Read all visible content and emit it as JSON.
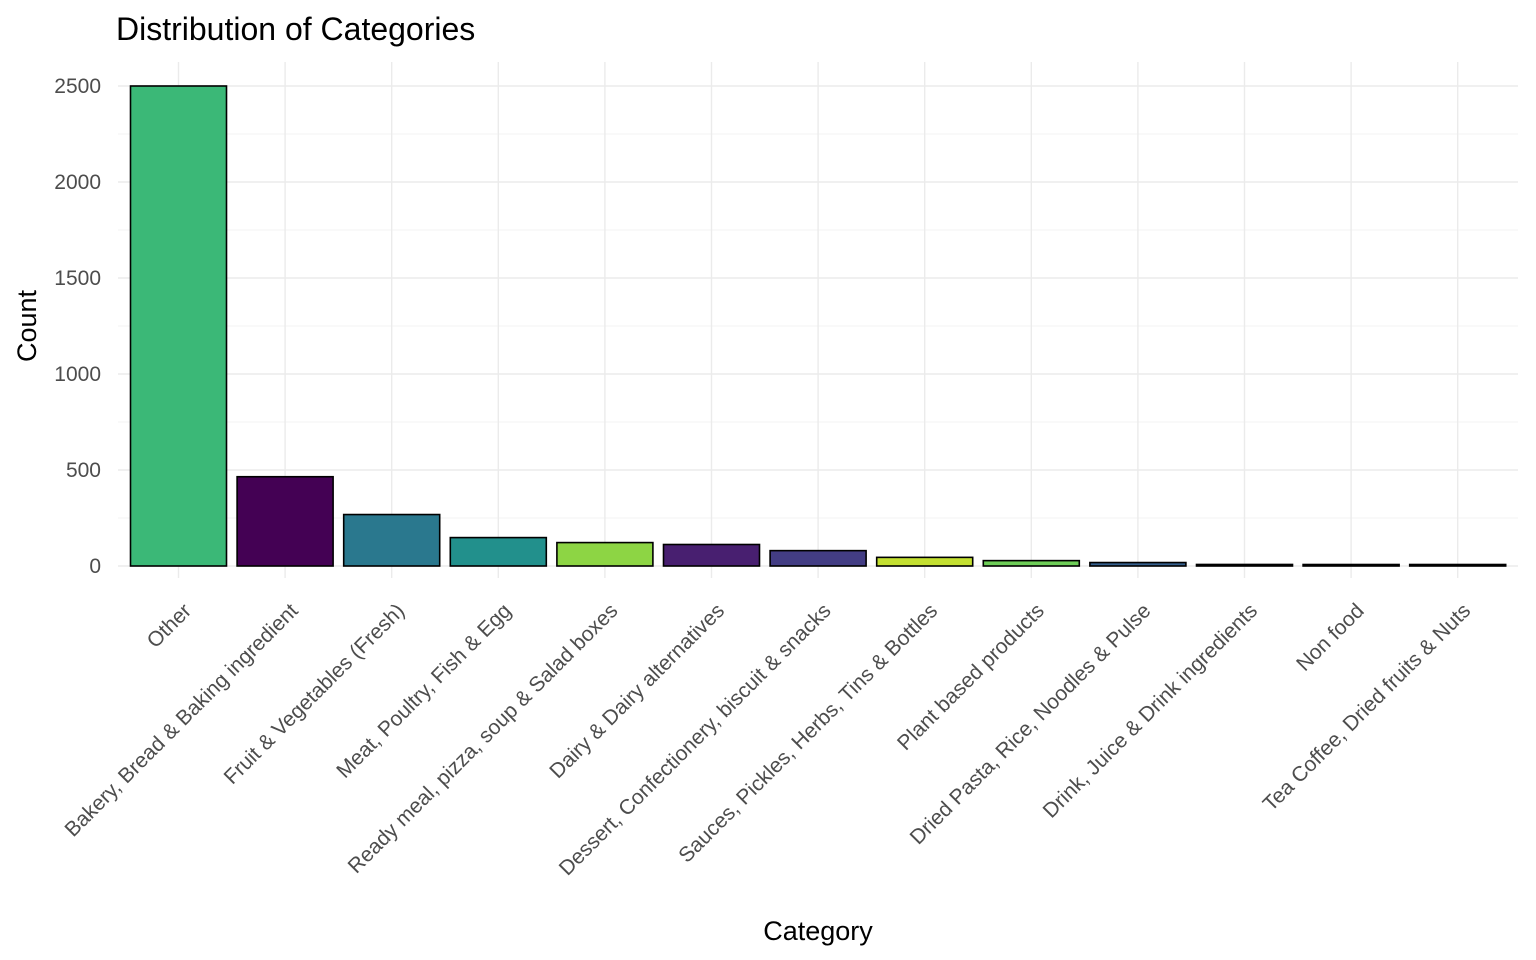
{
  "chart_data": {
    "type": "bar",
    "title": "Distribution of Categories",
    "xlabel": "Category",
    "ylabel": "Count",
    "ylim": [
      0,
      2500
    ],
    "yticks": [
      0,
      500,
      1000,
      1500,
      2000,
      2500
    ],
    "grid": true,
    "legend": "none",
    "categories": [
      "Other",
      "Bakery, Bread & Baking ingredient",
      "Fruit & Vegetables (Fresh)",
      "Meat, Poultry, Fish & Egg",
      "Ready meal, pizza, soup & Salad boxes",
      "Dairy & Dairy alternatives",
      "Dessert, Confectionery, biscuit & snacks",
      "Sauces, Pickles, Herbs, Tins & Bottles",
      "Plant based products",
      "Dried Pasta, Rice, Noodles & Pulse",
      "Drink, Juice & Drink ingredients",
      "Non food",
      "Tea Coffee, Dried fruits & Nuts"
    ],
    "values": [
      2500,
      465,
      268,
      148,
      122,
      112,
      80,
      45,
      28,
      18,
      8,
      7,
      6
    ],
    "colors": [
      "#3bb877",
      "#440154",
      "#2a788e",
      "#22908c",
      "#8dd544",
      "#481f70",
      "#433d84",
      "#c4e031",
      "#6ece58",
      "#355f8d",
      "#3b528b",
      "#2ea37f",
      "#4ac16d"
    ]
  }
}
